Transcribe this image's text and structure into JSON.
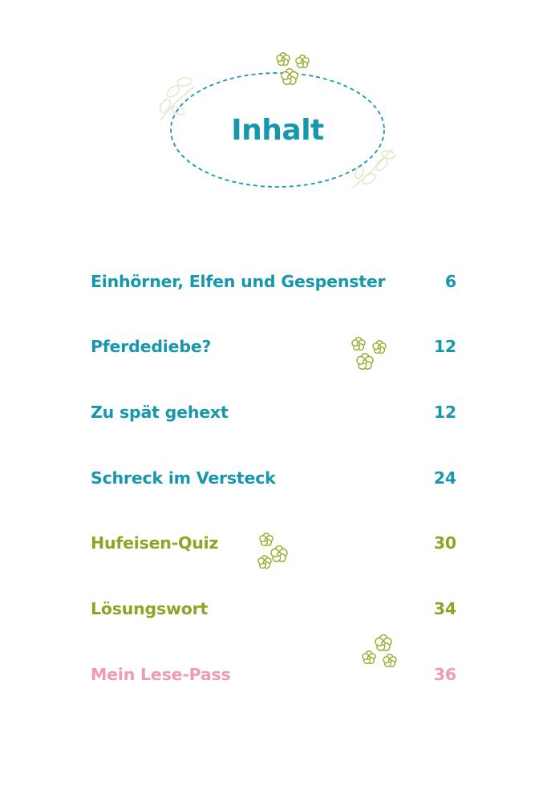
{
  "heading": {
    "title": "Inhalt"
  },
  "colors": {
    "teal": "#1697ad",
    "olive": "#8fa325",
    "pink": "#ef9ab9",
    "flower": "#9aab2c",
    "faint_leaf": "#dfe6c6"
  },
  "decorations": {
    "icons": [
      "flower-cluster-icon",
      "leaf-sprig-icon"
    ]
  },
  "toc": {
    "entries": [
      {
        "title": "Einhörner, Elfen und Gespenster",
        "page": "6",
        "color": "#1697ad"
      },
      {
        "title": "Pferdediebe?",
        "page": "12",
        "color": "#1697ad"
      },
      {
        "title": "Zu spät gehext",
        "page": "12",
        "color": "#1697ad"
      },
      {
        "title": "Schreck im Versteck",
        "page": "24",
        "color": "#1697ad"
      },
      {
        "title": "Hufeisen-Quiz",
        "page": "30",
        "color": "#8fa325"
      },
      {
        "title": "Lösungswort",
        "page": "34",
        "color": "#8fa325"
      },
      {
        "title": "Mein Lese-Pass",
        "page": "36",
        "color": "#ef9ab9"
      }
    ]
  }
}
